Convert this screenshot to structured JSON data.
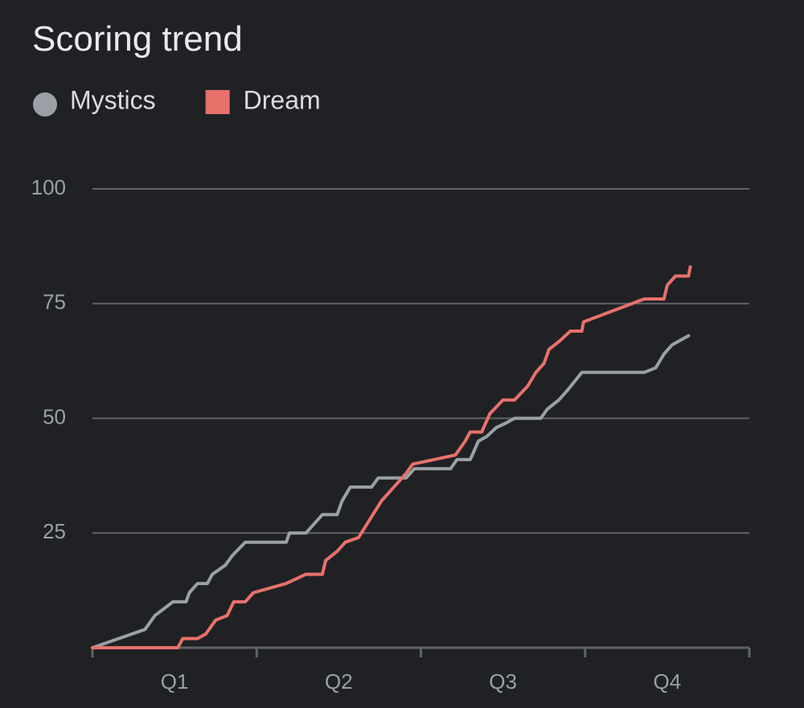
{
  "chart_data": {
    "type": "line",
    "title": "Scoring trend",
    "categories": [
      "Q1",
      "Q2",
      "Q3",
      "Q4"
    ],
    "xlim": [
      0,
      40
    ],
    "xticks": [
      0,
      10,
      20,
      30,
      40
    ],
    "ylim": [
      0,
      100
    ],
    "yticks": [
      25,
      50,
      75,
      100
    ],
    "grid": true,
    "series": [
      {
        "name": "Mystics",
        "color": "#9aa0a6",
        "marker": "circle",
        "x": [
          0,
          3.2,
          3.8,
          4.9,
          5.7,
          5.9,
          6.4,
          7.0,
          7.3,
          8.1,
          8.5,
          9.3,
          11.8,
          12.0,
          13.0,
          14.0,
          14.9,
          15.2,
          15.7,
          17.0,
          17.4,
          19.1,
          19.6,
          21.8,
          22.2,
          23.0,
          23.5,
          24.0,
          24.6,
          25.2,
          25.7,
          27.3,
          27.7,
          28.4,
          28.9,
          29.8,
          33.6,
          34.3,
          34.8,
          35.3,
          36.3
        ],
        "values": [
          0,
          4,
          7,
          10,
          10,
          12,
          14,
          14,
          16,
          18,
          20,
          23,
          23,
          25,
          25,
          29,
          29,
          32,
          35,
          35,
          37,
          37,
          39,
          39,
          41,
          41,
          45,
          46,
          48,
          49,
          50,
          50,
          52,
          54,
          56,
          60,
          60,
          61,
          64,
          66,
          68
        ]
      },
      {
        "name": "Dream",
        "color": "#e8716b",
        "marker": "square",
        "x": [
          0,
          5.2,
          5.5,
          6.4,
          6.9,
          7.5,
          8.2,
          8.6,
          9.3,
          9.8,
          11.8,
          13.0,
          14.0,
          14.2,
          14.9,
          15.4,
          16.2,
          16.9,
          17.6,
          18.6,
          19.1,
          19.5,
          22.1,
          22.7,
          23.0,
          23.7,
          24.2,
          25.0,
          25.7,
          26.5,
          27.0,
          27.5,
          27.8,
          28.5,
          29.1,
          29.8,
          29.9,
          33.6,
          34.8,
          35.0,
          35.5,
          36.3,
          36.4
        ],
        "values": [
          0,
          0,
          2,
          2,
          3,
          6,
          7,
          10,
          10,
          12,
          14,
          16,
          16,
          19,
          21,
          23,
          24,
          28,
          32,
          36,
          38,
          40,
          42,
          45,
          47,
          47,
          51,
          54,
          54,
          57,
          60,
          62,
          65,
          67,
          69,
          69,
          71,
          76,
          76,
          79,
          81,
          81,
          83
        ]
      }
    ]
  }
}
